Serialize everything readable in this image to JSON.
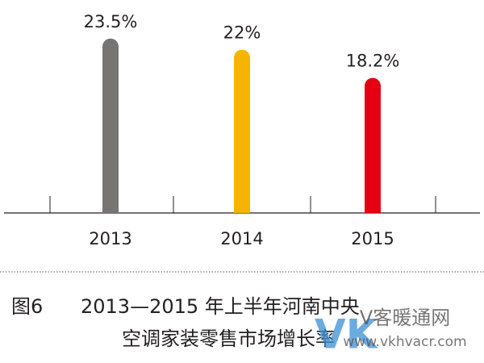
{
  "chart_data": {
    "type": "bar",
    "categories": [
      "2013",
      "2014",
      "2015"
    ],
    "values": [
      23.5,
      22,
      18.2
    ],
    "value_labels": [
      "23.5%",
      "22%",
      "18.2%"
    ],
    "colors": [
      "#767574",
      "#f5b400",
      "#e50012"
    ],
    "ylim": [
      0,
      25
    ],
    "figure_label": "图6",
    "title": [
      "2013—2015 年上半年河南中央",
      "空调家装零售市场增长率"
    ]
  },
  "watermark": {
    "logo": "VK",
    "name": "V客暖通网",
    "url": "www.vkhvacr.com"
  }
}
